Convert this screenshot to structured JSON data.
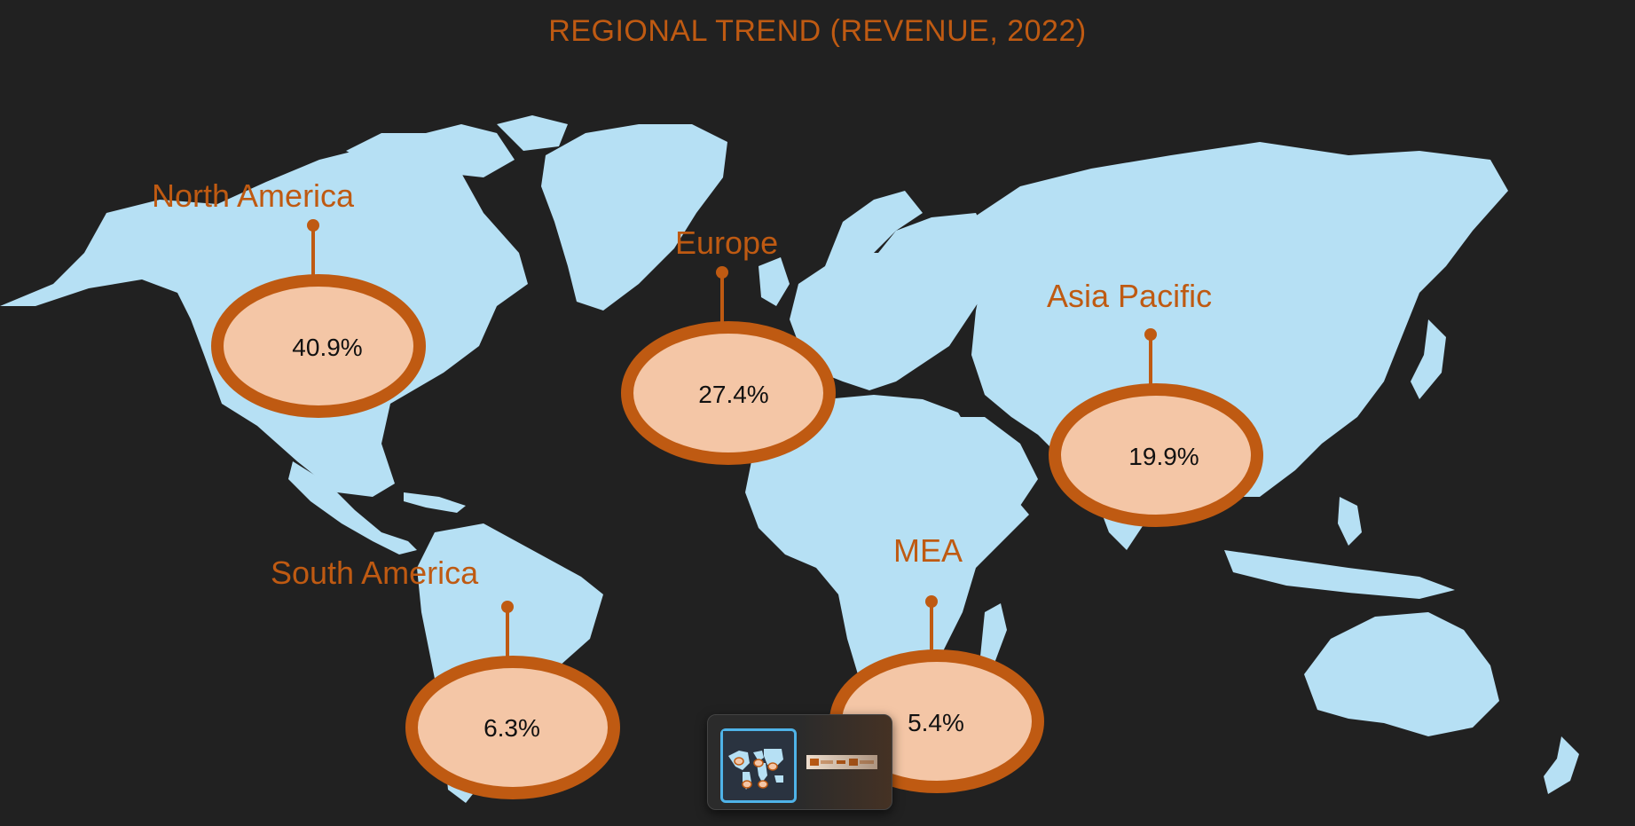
{
  "title": "REGIONAL TREND (REVENUE, 2022)",
  "colors": {
    "background": "#212121",
    "land": "#b6e0f4",
    "accent": "#bf5a12",
    "bubble_fill": "#f4c6a6",
    "value_text": "#111111"
  },
  "regions": [
    {
      "name": "North America",
      "value": "40.9%"
    },
    {
      "name": "Europe",
      "value": "27.4%"
    },
    {
      "name": "Asia Pacific",
      "value": "19.9%"
    },
    {
      "name": "South America",
      "value": "6.3%"
    },
    {
      "name": "MEA",
      "value": "5.4%"
    }
  ],
  "slide_switcher": {
    "thumbnails": [
      {
        "name": "world-map-slide-thumbnail",
        "active": true
      },
      {
        "name": "bar-summary-slide-thumbnail",
        "active": false
      }
    ]
  }
}
